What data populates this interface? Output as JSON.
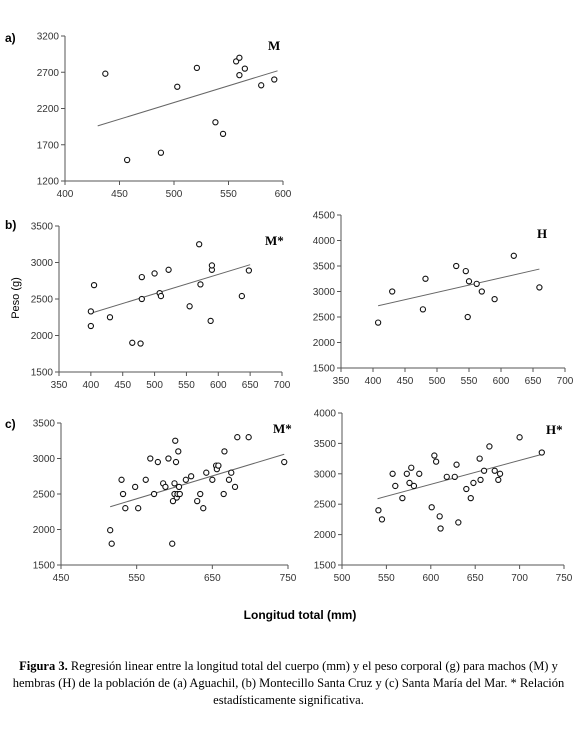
{
  "figure": {
    "x_axis_title": "Longitud total (mm)",
    "y_axis_title": "Peso (g)",
    "caption_label": "Figura 3.",
    "caption_text": "Regresión linear entre la longitud total del cuerpo (mm) y el peso corporal (g) para machos (M) y hembras (H) de la población de (a) Aguachil, (b) Montecillo Santa Cruz y (c) Santa María del Mar. * Relación estadísticamente significativa."
  },
  "chart_data": [
    {
      "type": "scatter",
      "panel_label": "a)",
      "title": "M",
      "xlim": [
        400,
        600
      ],
      "ylim": [
        1200,
        3200
      ],
      "xticks": [
        400,
        450,
        500,
        550,
        600
      ],
      "yticks": [
        1200,
        1700,
        2200,
        2700,
        3200
      ],
      "x": [
        437,
        457,
        488,
        503,
        521,
        538,
        545,
        557,
        560,
        560,
        565,
        580,
        592
      ],
      "y": [
        2680,
        1490,
        1590,
        2500,
        2760,
        2010,
        1850,
        2850,
        2900,
        2660,
        2750,
        2520,
        2600
      ],
      "trend": {
        "x": [
          430,
          595
        ],
        "y": [
          1960,
          2720
        ]
      }
    },
    {
      "type": "scatter",
      "panel_label": "b)",
      "title": "M*",
      "xlim": [
        350,
        700
      ],
      "ylim": [
        1500,
        3500
      ],
      "xticks": [
        350,
        400,
        450,
        500,
        550,
        600,
        650,
        700
      ],
      "yticks": [
        1500,
        2000,
        2500,
        3000,
        3500
      ],
      "x": [
        400,
        400,
        405,
        430,
        465,
        478,
        480,
        480,
        500,
        508,
        510,
        522,
        555,
        570,
        572,
        588,
        590,
        590,
        637,
        648
      ],
      "y": [
        2330,
        2130,
        2690,
        2250,
        1900,
        1890,
        2800,
        2500,
        2850,
        2580,
        2540,
        2900,
        2400,
        3250,
        2700,
        2200,
        2900,
        2960,
        2540,
        2890
      ],
      "trend": {
        "x": [
          398,
          650
        ],
        "y": [
          2300,
          2970
        ]
      }
    },
    {
      "type": "scatter",
      "panel_label": "",
      "title": "H",
      "xlim": [
        350,
        700
      ],
      "ylim": [
        1500,
        4500
      ],
      "xticks": [
        350,
        400,
        450,
        500,
        550,
        600,
        650,
        700
      ],
      "yticks": [
        1500,
        2000,
        2500,
        3000,
        3500,
        4000,
        4500
      ],
      "x": [
        408,
        430,
        478,
        482,
        530,
        545,
        548,
        550,
        562,
        570,
        590,
        620,
        660
      ],
      "y": [
        2390,
        3000,
        2650,
        3250,
        3500,
        3400,
        2500,
        3200,
        3150,
        3000,
        2850,
        3700,
        3080
      ],
      "trend": {
        "x": [
          408,
          660
        ],
        "y": [
          2720,
          3440
        ]
      }
    },
    {
      "type": "scatter",
      "panel_label": "c)",
      "title": "M*",
      "xlim": [
        450,
        750
      ],
      "ylim": [
        1500,
        3500
      ],
      "xticks": [
        450,
        550,
        650,
        750
      ],
      "yticks": [
        1500,
        2000,
        2500,
        3000,
        3500
      ],
      "x": [
        515,
        517,
        530,
        532,
        535,
        548,
        552,
        562,
        568,
        573,
        578,
        585,
        588,
        592,
        597,
        598,
        600,
        600,
        601,
        602,
        603,
        604,
        605,
        606,
        607,
        615,
        622,
        630,
        634,
        638,
        642,
        650,
        655,
        656,
        658,
        665,
        666,
        672,
        675,
        680,
        683,
        698,
        745
      ],
      "y": [
        1990,
        1800,
        2700,
        2500,
        2300,
        2600,
        2300,
        2700,
        3000,
        2500,
        2950,
        2650,
        2600,
        3000,
        1800,
        2400,
        2650,
        2500,
        3250,
        2950,
        2450,
        2500,
        3100,
        2600,
        2500,
        2700,
        2750,
        2400,
        2500,
        2300,
        2800,
        2700,
        2900,
        2850,
        2900,
        2500,
        3100,
        2700,
        2800,
        2600,
        3300,
        3300,
        2950
      ],
      "trend": {
        "x": [
          515,
          745
        ],
        "y": [
          2320,
          3060
        ]
      }
    },
    {
      "type": "scatter",
      "panel_label": "",
      "title": "H*",
      "xlim": [
        500,
        750
      ],
      "ylim": [
        1500,
        4000
      ],
      "xticks": [
        500,
        550,
        600,
        650,
        700,
        750
      ],
      "yticks": [
        1500,
        2000,
        2500,
        3000,
        3500,
        4000
      ],
      "x": [
        541,
        545,
        557,
        560,
        568,
        573,
        576,
        578,
        581,
        587,
        601,
        604,
        606,
        610,
        611,
        618,
        627,
        629,
        631,
        640,
        645,
        648,
        655,
        656,
        660,
        666,
        672,
        676,
        678,
        700,
        725
      ],
      "y": [
        2400,
        2250,
        3000,
        2800,
        2600,
        3000,
        2850,
        3100,
        2800,
        3000,
        2450,
        3300,
        3200,
        2300,
        2100,
        2950,
        2950,
        3150,
        2200,
        2750,
        2600,
        2850,
        3250,
        2900,
        3050,
        3450,
        3050,
        2900,
        3000,
        3600,
        3350
      ],
      "trend": {
        "x": [
          540,
          725
        ],
        "y": [
          2590,
          3320
        ]
      }
    }
  ]
}
